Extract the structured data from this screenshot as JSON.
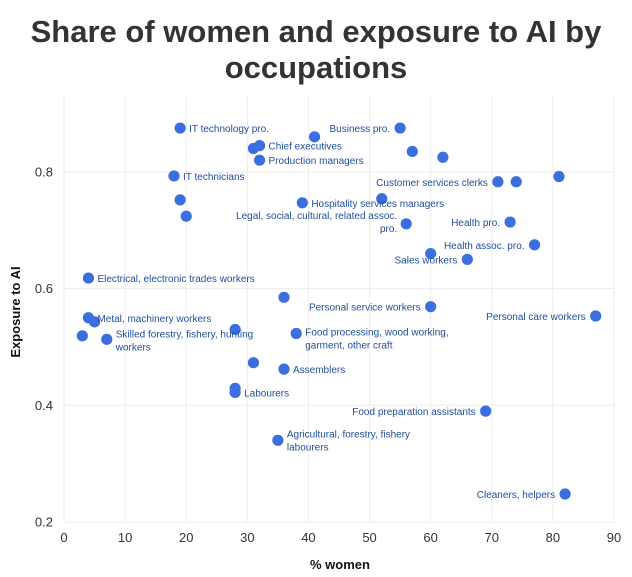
{
  "chart_data": {
    "type": "scatter",
    "title_line1": "Share of women and exposure to AI by",
    "title_line2": "occupations",
    "xlabel": "% women",
    "ylabel": "Exposure to AI",
    "xlim": [
      0,
      90
    ],
    "ylim": [
      0.2,
      0.93
    ],
    "xticks": [
      0,
      10,
      20,
      30,
      40,
      50,
      60,
      70,
      80,
      90
    ],
    "yticks": [
      0.2,
      0.4,
      0.6,
      0.8
    ],
    "ytick_labels": [
      "0.2",
      "0.4",
      "0.6",
      "0.8"
    ],
    "grid": true,
    "color": "#3b6fe0",
    "points": [
      {
        "x": 19,
        "y": 0.875,
        "label": "IT technology pro."
      },
      {
        "x": 41,
        "y": 0.86,
        "label": ""
      },
      {
        "x": 55,
        "y": 0.875,
        "label": "Business pro."
      },
      {
        "x": 32,
        "y": 0.845,
        "label": "Chief executives"
      },
      {
        "x": 31,
        "y": 0.84,
        "label": ""
      },
      {
        "x": 57,
        "y": 0.835,
        "label": ""
      },
      {
        "x": 62,
        "y": 0.825,
        "label": ""
      },
      {
        "x": 32,
        "y": 0.82,
        "label": "Production managers"
      },
      {
        "x": 18,
        "y": 0.793,
        "label": "IT technicians"
      },
      {
        "x": 71,
        "y": 0.783,
        "label": "Customer services clerks"
      },
      {
        "x": 74,
        "y": 0.783,
        "label": ""
      },
      {
        "x": 81,
        "y": 0.792,
        "label": ""
      },
      {
        "x": 19,
        "y": 0.752,
        "label": ""
      },
      {
        "x": 20,
        "y": 0.724,
        "label": ""
      },
      {
        "x": 39,
        "y": 0.747,
        "label": "Hospitality services managers"
      },
      {
        "x": 52,
        "y": 0.754,
        "label": ""
      },
      {
        "x": 56,
        "y": 0.711,
        "label": "Legal, social, cultural, related assoc. pro."
      },
      {
        "x": 73,
        "y": 0.714,
        "label": "Health pro."
      },
      {
        "x": 77,
        "y": 0.675,
        "label": "Health assoc. pro."
      },
      {
        "x": 60,
        "y": 0.66,
        "label": ""
      },
      {
        "x": 66,
        "y": 0.65,
        "label": "Sales workers"
      },
      {
        "x": 4,
        "y": 0.618,
        "label": "Electrical, electronic trades workers"
      },
      {
        "x": 36,
        "y": 0.585,
        "label": ""
      },
      {
        "x": 60,
        "y": 0.569,
        "label": "Personal service workers"
      },
      {
        "x": 87,
        "y": 0.553,
        "label": "Personal care workers"
      },
      {
        "x": 4,
        "y": 0.55,
        "label": "Metal, machinery workers"
      },
      {
        "x": 5,
        "y": 0.543,
        "label": ""
      },
      {
        "x": 38,
        "y": 0.523,
        "label": "Food processing, wood working, garment, other craft"
      },
      {
        "x": 3,
        "y": 0.519,
        "label": ""
      },
      {
        "x": 7,
        "y": 0.513,
        "label": "Skilled forestry, fishery, hunting workers"
      },
      {
        "x": 28,
        "y": 0.53,
        "label": ""
      },
      {
        "x": 31,
        "y": 0.473,
        "label": ""
      },
      {
        "x": 36,
        "y": 0.462,
        "label": "Assemblers"
      },
      {
        "x": 28,
        "y": 0.429,
        "label": ""
      },
      {
        "x": 28,
        "y": 0.422,
        "label": "Labourers"
      },
      {
        "x": 69,
        "y": 0.39,
        "label": "Food preparation assistants"
      },
      {
        "x": 35,
        "y": 0.34,
        "label": "Agricultural, forestry, fishery labourers"
      },
      {
        "x": 82,
        "y": 0.248,
        "label": "Cleaners, helpers"
      }
    ]
  }
}
